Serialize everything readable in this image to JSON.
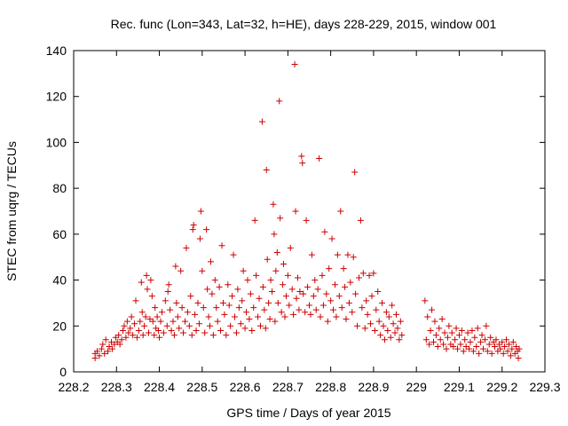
{
  "chart_data": {
    "type": "scatter",
    "title": "Rec. func (Lon=343, Lat=32, h=HE), days 228-229, 2015, window 001",
    "xlabel": "GPS time / Days of year 2015",
    "ylabel": "STEC from uqrg / TECUs",
    "xlim": [
      228.2,
      229.3
    ],
    "ylim": [
      0,
      140
    ],
    "xticks": [
      "228.2",
      "228.3",
      "228.4",
      "228.5",
      "228.6",
      "228.7",
      "228.8",
      "228.9",
      "229",
      "229.1",
      "229.2",
      "229.3"
    ],
    "yticks": [
      "0",
      "20",
      "40",
      "60",
      "80",
      "100",
      "120",
      "140"
    ],
    "grid": false,
    "legend": "none",
    "marker": "+",
    "color": "#cc0000",
    "points": [
      [
        228.25,
        8
      ],
      [
        228.25,
        6
      ],
      [
        228.255,
        9
      ],
      [
        228.26,
        7
      ],
      [
        228.265,
        10
      ],
      [
        228.268,
        12
      ],
      [
        228.272,
        8
      ],
      [
        228.275,
        14
      ],
      [
        228.28,
        9
      ],
      [
        228.283,
        11
      ],
      [
        228.288,
        13
      ],
      [
        228.29,
        10
      ],
      [
        228.295,
        12
      ],
      [
        228.298,
        15
      ],
      [
        228.302,
        13
      ],
      [
        228.305,
        16
      ],
      [
        228.308,
        12
      ],
      [
        228.312,
        14
      ],
      [
        228.315,
        18
      ],
      [
        228.318,
        20
      ],
      [
        228.322,
        15
      ],
      [
        228.325,
        22
      ],
      [
        228.328,
        17
      ],
      [
        228.332,
        19
      ],
      [
        228.335,
        24
      ],
      [
        228.338,
        16
      ],
      [
        228.342,
        21
      ],
      [
        228.345,
        31
      ],
      [
        228.348,
        15
      ],
      [
        228.352,
        18
      ],
      [
        228.355,
        22
      ],
      [
        228.358,
        39
      ],
      [
        228.36,
        26
      ],
      [
        228.362,
        16
      ],
      [
        228.365,
        20
      ],
      [
        228.368,
        24
      ],
      [
        228.37,
        42
      ],
      [
        228.372,
        36
      ],
      [
        228.375,
        17
      ],
      [
        228.378,
        23
      ],
      [
        228.38,
        40
      ],
      [
        228.383,
        33
      ],
      [
        228.385,
        22
      ],
      [
        228.388,
        16
      ],
      [
        228.39,
        28
      ],
      [
        228.392,
        19
      ],
      [
        228.395,
        24
      ],
      [
        228.398,
        18
      ],
      [
        228.4,
        15
      ],
      [
        228.403,
        22
      ],
      [
        228.406,
        26
      ],
      [
        228.41,
        17
      ],
      [
        228.414,
        31
      ],
      [
        228.418,
        20
      ],
      [
        228.42,
        35
      ],
      [
        228.422,
        38
      ],
      [
        228.425,
        27
      ],
      [
        228.428,
        18
      ],
      [
        228.432,
        22
      ],
      [
        228.435,
        16
      ],
      [
        228.438,
        46
      ],
      [
        228.44,
        30
      ],
      [
        228.443,
        24
      ],
      [
        228.446,
        19
      ],
      [
        228.45,
        44
      ],
      [
        228.453,
        28
      ],
      [
        228.456,
        17
      ],
      [
        228.46,
        22
      ],
      [
        228.463,
        54
      ],
      [
        228.466,
        26
      ],
      [
        228.47,
        20
      ],
      [
        228.473,
        33
      ],
      [
        228.476,
        16
      ],
      [
        228.478,
        62
      ],
      [
        228.48,
        64
      ],
      [
        228.483,
        25
      ],
      [
        228.486,
        18
      ],
      [
        228.49,
        30
      ],
      [
        228.493,
        21
      ],
      [
        228.495,
        58
      ],
      [
        228.497,
        70
      ],
      [
        228.5,
        44
      ],
      [
        228.503,
        28
      ],
      [
        228.506,
        17
      ],
      [
        228.51,
        62
      ],
      [
        228.512,
        36
      ],
      [
        228.515,
        24
      ],
      [
        228.518,
        20
      ],
      [
        228.52,
        48
      ],
      [
        228.523,
        34
      ],
      [
        228.526,
        16
      ],
      [
        228.53,
        40
      ],
      [
        228.533,
        28
      ],
      [
        228.536,
        22
      ],
      [
        228.54,
        37
      ],
      [
        228.543,
        18
      ],
      [
        228.546,
        55
      ],
      [
        228.549,
        30
      ],
      [
        228.552,
        25
      ],
      [
        228.556,
        16
      ],
      [
        228.56,
        38
      ],
      [
        228.563,
        29
      ],
      [
        228.566,
        20
      ],
      [
        228.57,
        33
      ],
      [
        228.573,
        51
      ],
      [
        228.576,
        24
      ],
      [
        228.58,
        17
      ],
      [
        228.583,
        36
      ],
      [
        228.586,
        28
      ],
      [
        228.59,
        21
      ],
      [
        228.593,
        31
      ],
      [
        228.596,
        44
      ],
      [
        228.6,
        19
      ],
      [
        228.603,
        26
      ],
      [
        228.606,
        40
      ],
      [
        228.61,
        23
      ],
      [
        228.613,
        34
      ],
      [
        228.616,
        18
      ],
      [
        228.62,
        28
      ],
      [
        228.623,
        66
      ],
      [
        228.626,
        42
      ],
      [
        228.63,
        24
      ],
      [
        228.633,
        32
      ],
      [
        228.636,
        20
      ],
      [
        228.64,
        109
      ],
      [
        228.642,
        37
      ],
      [
        228.645,
        27
      ],
      [
        228.648,
        19
      ],
      [
        228.65,
        88
      ],
      [
        228.652,
        49
      ],
      [
        228.655,
        30
      ],
      [
        228.658,
        23
      ],
      [
        228.66,
        40
      ],
      [
        228.663,
        35
      ],
      [
        228.666,
        73
      ],
      [
        228.668,
        60
      ],
      [
        228.67,
        22
      ],
      [
        228.672,
        44
      ],
      [
        228.675,
        52
      ],
      [
        228.677,
        30
      ],
      [
        228.68,
        118
      ],
      [
        228.682,
        67
      ],
      [
        228.685,
        26
      ],
      [
        228.688,
        38
      ],
      [
        228.69,
        47
      ],
      [
        228.693,
        24
      ],
      [
        228.696,
        33
      ],
      [
        228.7,
        42
      ],
      [
        228.703,
        29
      ],
      [
        228.706,
        54
      ],
      [
        228.71,
        36
      ],
      [
        228.713,
        25
      ],
      [
        228.716,
        134
      ],
      [
        228.718,
        70
      ],
      [
        228.72,
        32
      ],
      [
        228.723,
        41
      ],
      [
        228.726,
        27
      ],
      [
        228.728,
        35
      ],
      [
        228.732,
        94
      ],
      [
        228.734,
        91
      ],
      [
        228.736,
        34
      ],
      [
        228.74,
        26
      ],
      [
        228.743,
        66
      ],
      [
        228.746,
        37
      ],
      [
        228.75,
        29
      ],
      [
        228.753,
        25
      ],
      [
        228.756,
        51
      ],
      [
        228.76,
        33
      ],
      [
        228.763,
        40
      ],
      [
        228.766,
        27
      ],
      [
        228.77,
        36
      ],
      [
        228.773,
        93
      ],
      [
        228.776,
        24
      ],
      [
        228.78,
        42
      ],
      [
        228.783,
        29
      ],
      [
        228.786,
        61
      ],
      [
        228.79,
        34
      ],
      [
        228.793,
        22
      ],
      [
        228.796,
        45
      ],
      [
        228.8,
        31
      ],
      [
        228.803,
        58
      ],
      [
        228.806,
        27
      ],
      [
        228.81,
        38
      ],
      [
        228.813,
        24
      ],
      [
        228.816,
        51
      ],
      [
        228.82,
        33
      ],
      [
        228.823,
        70
      ],
      [
        228.826,
        28
      ],
      [
        228.83,
        45
      ],
      [
        228.833,
        37
      ],
      [
        228.836,
        23
      ],
      [
        228.84,
        51
      ],
      [
        228.843,
        30
      ],
      [
        228.846,
        39
      ],
      [
        228.85,
        26
      ],
      [
        228.853,
        50
      ],
      [
        228.856,
        87
      ],
      [
        228.858,
        34
      ],
      [
        228.862,
        20
      ],
      [
        228.866,
        41
      ],
      [
        228.87,
        66
      ],
      [
        228.873,
        28
      ],
      [
        228.876,
        43
      ],
      [
        228.88,
        19
      ],
      [
        228.883,
        31
      ],
      [
        228.886,
        25
      ],
      [
        228.89,
        42
      ],
      [
        228.893,
        21
      ],
      [
        228.896,
        33
      ],
      [
        228.9,
        43
      ],
      [
        228.903,
        18
      ],
      [
        228.906,
        27
      ],
      [
        228.91,
        35
      ],
      [
        228.913,
        22
      ],
      [
        228.916,
        16
      ],
      [
        228.92,
        30
      ],
      [
        228.923,
        20
      ],
      [
        228.926,
        14
      ],
      [
        228.93,
        26
      ],
      [
        228.933,
        18
      ],
      [
        228.936,
        24
      ],
      [
        228.94,
        15
      ],
      [
        228.943,
        29
      ],
      [
        228.946,
        21
      ],
      [
        228.95,
        17
      ],
      [
        228.953,
        25
      ],
      [
        228.956,
        19
      ],
      [
        228.96,
        14
      ],
      [
        228.963,
        22
      ],
      [
        228.966,
        16
      ],
      [
        229.02,
        31
      ],
      [
        229.023,
        14
      ],
      [
        229.026,
        24
      ],
      [
        229.03,
        12
      ],
      [
        229.033,
        18
      ],
      [
        229.036,
        27
      ],
      [
        229.04,
        13
      ],
      [
        229.043,
        22
      ],
      [
        229.046,
        16
      ],
      [
        229.05,
        11
      ],
      [
        229.053,
        19
      ],
      [
        229.056,
        14
      ],
      [
        229.06,
        23
      ],
      [
        229.063,
        12
      ],
      [
        229.066,
        17
      ],
      [
        229.07,
        10
      ],
      [
        229.073,
        15
      ],
      [
        229.076,
        20
      ],
      [
        229.08,
        12
      ],
      [
        229.083,
        17
      ],
      [
        229.086,
        11
      ],
      [
        229.09,
        14
      ],
      [
        229.093,
        19
      ],
      [
        229.096,
        10
      ],
      [
        229.1,
        16
      ],
      [
        229.103,
        12
      ],
      [
        229.106,
        18
      ],
      [
        229.11,
        9
      ],
      [
        229.113,
        14
      ],
      [
        229.116,
        11
      ],
      [
        229.12,
        17
      ],
      [
        229.123,
        10
      ],
      [
        229.126,
        13
      ],
      [
        229.13,
        18
      ],
      [
        229.133,
        9
      ],
      [
        229.136,
        15
      ],
      [
        229.14,
        11
      ],
      [
        229.143,
        19
      ],
      [
        229.146,
        8
      ],
      [
        229.15,
        13
      ],
      [
        229.153,
        16
      ],
      [
        229.156,
        10
      ],
      [
        229.16,
        14
      ],
      [
        229.163,
        20
      ],
      [
        229.166,
        9
      ],
      [
        229.17,
        12
      ],
      [
        229.173,
        15
      ],
      [
        229.176,
        8
      ],
      [
        229.18,
        13
      ],
      [
        229.183,
        11
      ],
      [
        229.186,
        14
      ],
      [
        229.19,
        9
      ],
      [
        229.193,
        12
      ],
      [
        229.196,
        10
      ],
      [
        229.2,
        13
      ],
      [
        229.203,
        8
      ],
      [
        229.206,
        11
      ],
      [
        229.21,
        14
      ],
      [
        229.213,
        9
      ],
      [
        229.216,
        12
      ],
      [
        229.22,
        7
      ],
      [
        229.223,
        10
      ],
      [
        229.226,
        13
      ],
      [
        229.23,
        8
      ],
      [
        229.233,
        11
      ],
      [
        229.236,
        9
      ],
      [
        229.238,
        6
      ],
      [
        229.24,
        10
      ]
    ]
  }
}
